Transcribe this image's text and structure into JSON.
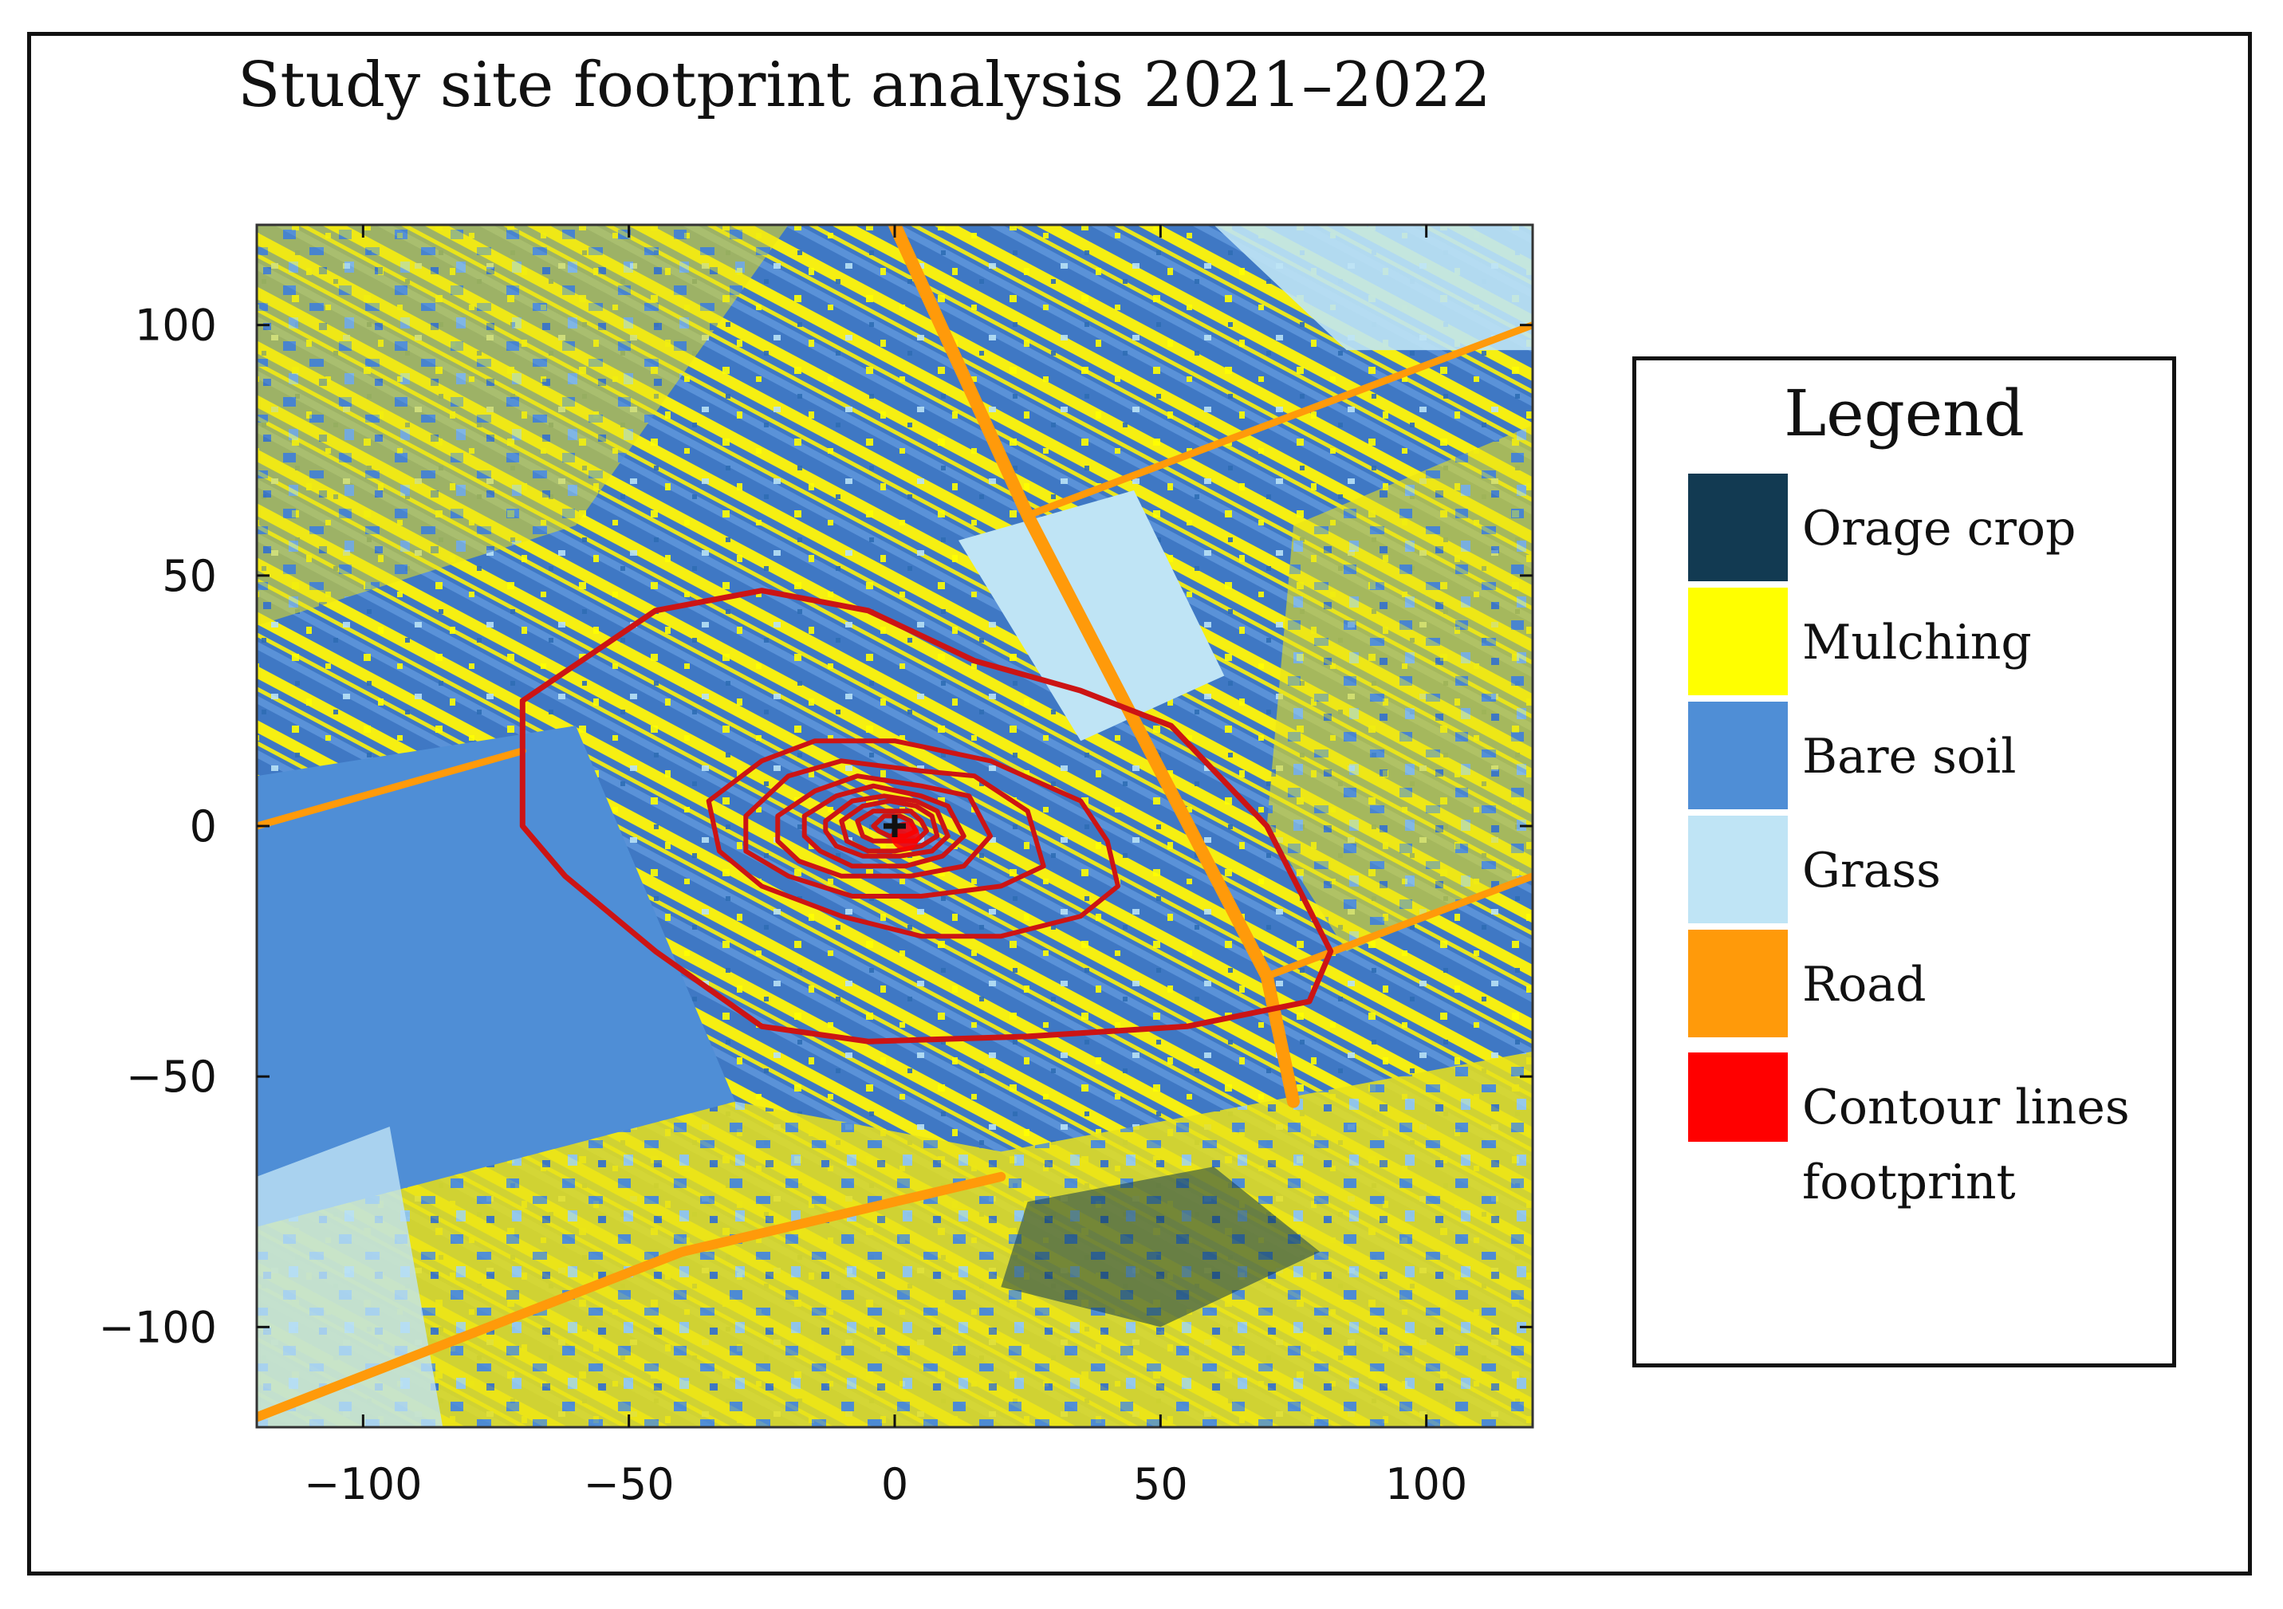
{
  "chart_data": {
    "type": "heatmap",
    "title": "Study site footprint analysis 2021–2022",
    "xlabel": "",
    "ylabel": "",
    "xlim": [
      -120,
      120
    ],
    "ylim": [
      -120,
      120
    ],
    "x_ticks": [
      -100,
      -50,
      0,
      50,
      100
    ],
    "y_ticks": [
      100,
      50,
      0,
      -50,
      -100
    ],
    "x_tick_labels": [
      "−100",
      "−50",
      "0",
      "50",
      "100"
    ],
    "y_tick_labels": [
      "100",
      "50",
      "0",
      "−50",
      "−100"
    ],
    "grid": false,
    "tower": [
      0,
      0
    ],
    "road": {
      "main": [
        [
          0,
          120
        ],
        [
          25,
          62
        ],
        [
          70,
          -30
        ],
        [
          75,
          -55
        ]
      ],
      "branch_ne": [
        [
          25,
          62
        ],
        [
          120,
          100
        ]
      ],
      "branch_e": [
        [
          70,
          -30
        ],
        [
          120,
          -10
        ]
      ],
      "southwest": [
        [
          -120,
          -118
        ],
        [
          -40,
          -85
        ],
        [
          20,
          -70
        ]
      ],
      "west": [
        [
          -120,
          0
        ],
        [
          -70,
          15
        ]
      ]
    },
    "grass_patch": [
      [
        12,
        57
      ],
      [
        45,
        67
      ],
      [
        62,
        30
      ],
      [
        35,
        17
      ]
    ],
    "bare_soil_field": [
      [
        -120,
        10
      ],
      [
        -60,
        20
      ],
      [
        -30,
        -55
      ],
      [
        -120,
        -80
      ]
    ],
    "contours": [
      [
        [
          -70,
          25
        ],
        [
          -45,
          43
        ],
        [
          -25,
          47
        ],
        [
          -5,
          43
        ],
        [
          15,
          33
        ],
        [
          35,
          27
        ],
        [
          52,
          20
        ],
        [
          70,
          0
        ],
        [
          82,
          -25
        ],
        [
          78,
          -35
        ],
        [
          55,
          -40
        ],
        [
          25,
          -42
        ],
        [
          -5,
          -43
        ],
        [
          -25,
          -40
        ],
        [
          -45,
          -25
        ],
        [
          -62,
          -10
        ],
        [
          -70,
          0
        ],
        [
          -70,
          25
        ]
      ],
      [
        [
          -35,
          5
        ],
        [
          -25,
          13
        ],
        [
          -15,
          17
        ],
        [
          0,
          17
        ],
        [
          18,
          13
        ],
        [
          35,
          5
        ],
        [
          40,
          -3
        ],
        [
          42,
          -12
        ],
        [
          35,
          -18
        ],
        [
          20,
          -22
        ],
        [
          5,
          -22
        ],
        [
          -10,
          -18
        ],
        [
          -25,
          -12
        ],
        [
          -33,
          -5
        ],
        [
          -35,
          5
        ]
      ],
      [
        [
          -28,
          2
        ],
        [
          -20,
          10
        ],
        [
          -10,
          13
        ],
        [
          5,
          11
        ],
        [
          15,
          10
        ],
        [
          25,
          3
        ],
        [
          28,
          -8
        ],
        [
          20,
          -12
        ],
        [
          5,
          -14
        ],
        [
          -8,
          -14
        ],
        [
          -20,
          -10
        ],
        [
          -28,
          -5
        ],
        [
          -28,
          2
        ]
      ],
      [
        [
          -22,
          2
        ],
        [
          -15,
          7
        ],
        [
          -7,
          10
        ],
        [
          5,
          8
        ],
        [
          14,
          6
        ],
        [
          18,
          -2
        ],
        [
          13,
          -8
        ],
        [
          3,
          -10
        ],
        [
          -10,
          -10
        ],
        [
          -18,
          -7
        ],
        [
          -22,
          -3
        ],
        [
          -22,
          2
        ]
      ],
      [
        [
          -17,
          2
        ],
        [
          -11,
          6
        ],
        [
          -4,
          8
        ],
        [
          5,
          6
        ],
        [
          10,
          4
        ],
        [
          13,
          -2
        ],
        [
          9,
          -6
        ],
        [
          2,
          -8
        ],
        [
          -8,
          -8
        ],
        [
          -14,
          -5
        ],
        [
          -17,
          -2
        ],
        [
          -17,
          2
        ]
      ],
      [
        [
          -13,
          1
        ],
        [
          -8,
          5
        ],
        [
          -2,
          6
        ],
        [
          4,
          5
        ],
        [
          8,
          3
        ],
        [
          10,
          -2
        ],
        [
          7,
          -5
        ],
        [
          1,
          -6
        ],
        [
          -6,
          -6
        ],
        [
          -11,
          -4
        ],
        [
          -13,
          -1
        ],
        [
          -13,
          1
        ]
      ],
      [
        [
          -10,
          1
        ],
        [
          -6,
          4
        ],
        [
          -1,
          5
        ],
        [
          4,
          4
        ],
        [
          7,
          2
        ],
        [
          8,
          -2
        ],
        [
          5,
          -4
        ],
        [
          0,
          -5
        ],
        [
          -5,
          -5
        ],
        [
          -9,
          -3
        ],
        [
          -10,
          1
        ]
      ],
      [
        [
          -7,
          1
        ],
        [
          -4,
          3
        ],
        [
          0,
          3
        ],
        [
          3,
          3
        ],
        [
          5,
          1
        ],
        [
          6,
          -1
        ],
        [
          4,
          -3
        ],
        [
          0,
          -3
        ],
        [
          -4,
          -3
        ],
        [
          -6,
          -2
        ],
        [
          -7,
          1
        ]
      ],
      [
        [
          -4,
          0
        ],
        [
          -2,
          2
        ],
        [
          1,
          2
        ],
        [
          3,
          1
        ],
        [
          4,
          -1
        ],
        [
          2,
          -2
        ],
        [
          -1,
          -2
        ],
        [
          -3,
          -1
        ],
        [
          -4,
          0
        ]
      ]
    ],
    "legend": {
      "title": "Legend",
      "placement": "right",
      "items": [
        {
          "label": "Orage crop",
          "color": "#123a52"
        },
        {
          "label": "Mulching",
          "color": "#ffff00"
        },
        {
          "label": "Bare soil",
          "color": "#4f8ed6"
        },
        {
          "label": "Grass",
          "color": "#bfe4f5"
        },
        {
          "label": "Road",
          "color": "#ff9a0a"
        },
        {
          "label": "Contour lines footprint",
          "label_line1": "Contour lines",
          "label_line2": "footprint",
          "color": "#ff0000"
        }
      ]
    },
    "contour_color": "#cc1414",
    "tower_marker_color": "#111111"
  }
}
